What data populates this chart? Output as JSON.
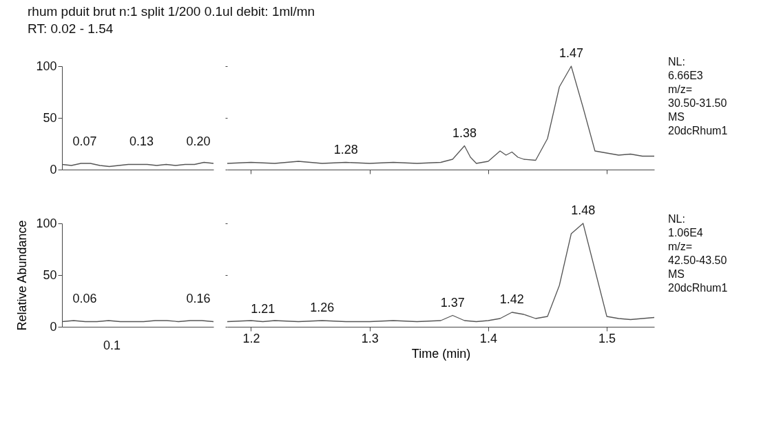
{
  "chart_data": [
    {
      "type": "line",
      "title": "rhum pduit brut n:1 split 1/200 0.1ul  debit: 1ml/mn",
      "subtitle": "RT: 0.02 - 1.54",
      "tick_labels": "y",
      "categories": [
        null,
        null,
        null,
        null,
        null,
        null,
        null,
        null,
        null,
        null,
        null,
        null,
        null,
        null,
        null,
        null,
        null
      ],
      "series": [
        {
          "color": "#555555",
          "values": [
            5,
            4,
            6,
            6,
            4,
            3,
            4,
            5,
            5,
            5,
            4,
            5,
            4,
            5,
            5,
            7,
            6
          ]
        }
      ],
      "ylim": [
        0,
        100
      ],
      "yticks": [
        0,
        50,
        100
      ],
      "annotations": [
        "0.07",
        "0.13",
        "0.20"
      ]
    },
    {
      "type": "line",
      "tick_labels": false,
      "x": [
        1.18,
        1.2,
        1.22,
        1.24,
        1.26,
        1.28,
        1.3,
        1.32,
        1.34,
        1.36,
        1.37,
        1.38,
        1.385,
        1.39,
        1.4,
        1.41,
        1.415,
        1.42,
        1.425,
        1.43,
        1.44,
        1.45,
        1.46,
        1.47,
        1.48,
        1.49,
        1.5,
        1.51,
        1.52,
        1.53,
        1.54
      ],
      "series": [
        {
          "color": "#555555",
          "values": [
            6,
            7,
            6,
            8,
            6,
            7,
            6,
            7,
            6,
            7,
            10,
            23,
            12,
            6,
            8,
            18,
            14,
            17,
            12,
            10,
            9,
            30,
            80,
            100,
            60,
            18,
            16,
            14,
            15,
            13,
            13
          ]
        }
      ],
      "xlim": [
        1.18,
        1.54
      ],
      "xticks": [
        1.2,
        1.3,
        1.4,
        1.5
      ],
      "ylim": [
        0,
        100
      ],
      "yticks": [
        0,
        50,
        100
      ],
      "annotations": [
        {
          "text": "1.28",
          "x": 1.28,
          "y": 7
        },
        {
          "text": "1.38",
          "x": 1.38,
          "y": 23
        },
        {
          "text": "1.47",
          "x": 1.47,
          "y": 100
        },
        "NL:",
        "6.66E3",
        "m/z=",
        "30.50-31.50",
        "MS",
        "20dcRhum1"
      ]
    },
    {
      "type": "line",
      "ylabel": "Relative Abundance",
      "categories": [
        null,
        null,
        null,
        null,
        null,
        null,
        null,
        null,
        null,
        null,
        null,
        null,
        null,
        null
      ],
      "series": [
        {
          "color": "#555555",
          "values": [
            5,
            6,
            5,
            5,
            6,
            5,
            5,
            5,
            6,
            6,
            5,
            6,
            6,
            5
          ]
        }
      ],
      "ylim": [
        0,
        100
      ],
      "yticks": [
        0,
        50,
        100
      ],
      "annotations": [
        "0.06",
        "0.16",
        "0.1"
      ]
    },
    {
      "type": "line",
      "xlabel": "Time (min)",
      "tick_labels": "x",
      "x": [
        1.18,
        1.2,
        1.21,
        1.22,
        1.24,
        1.26,
        1.28,
        1.3,
        1.32,
        1.34,
        1.36,
        1.37,
        1.38,
        1.39,
        1.4,
        1.41,
        1.42,
        1.43,
        1.44,
        1.45,
        1.46,
        1.47,
        1.48,
        1.49,
        1.5,
        1.51,
        1.52,
        1.53,
        1.54
      ],
      "series": [
        {
          "color": "#555555",
          "values": [
            5,
            6,
            5,
            6,
            5,
            6,
            5,
            5,
            6,
            5,
            6,
            11,
            6,
            5,
            6,
            8,
            14,
            12,
            8,
            10,
            40,
            90,
            100,
            55,
            10,
            8,
            7,
            8,
            9
          ]
        }
      ],
      "xlim": [
        1.18,
        1.54
      ],
      "xticks": [
        1.2,
        1.3,
        1.4,
        1.5
      ],
      "ylim": [
        0,
        100
      ],
      "yticks": [
        0,
        50,
        100
      ],
      "annotations": [
        {
          "text": "1.21",
          "x": 1.21,
          "y": 5
        },
        {
          "text": "1.26",
          "x": 1.26,
          "y": 6
        },
        {
          "text": "1.37",
          "x": 1.37,
          "y": 11
        },
        {
          "text": "1.42",
          "x": 1.42,
          "y": 14
        },
        {
          "text": "1.48",
          "x": 1.48,
          "y": 100
        },
        "NL:",
        "1.06E4",
        "m/z=",
        "42.50-43.50",
        "MS",
        "20dcRhum1"
      ]
    }
  ]
}
